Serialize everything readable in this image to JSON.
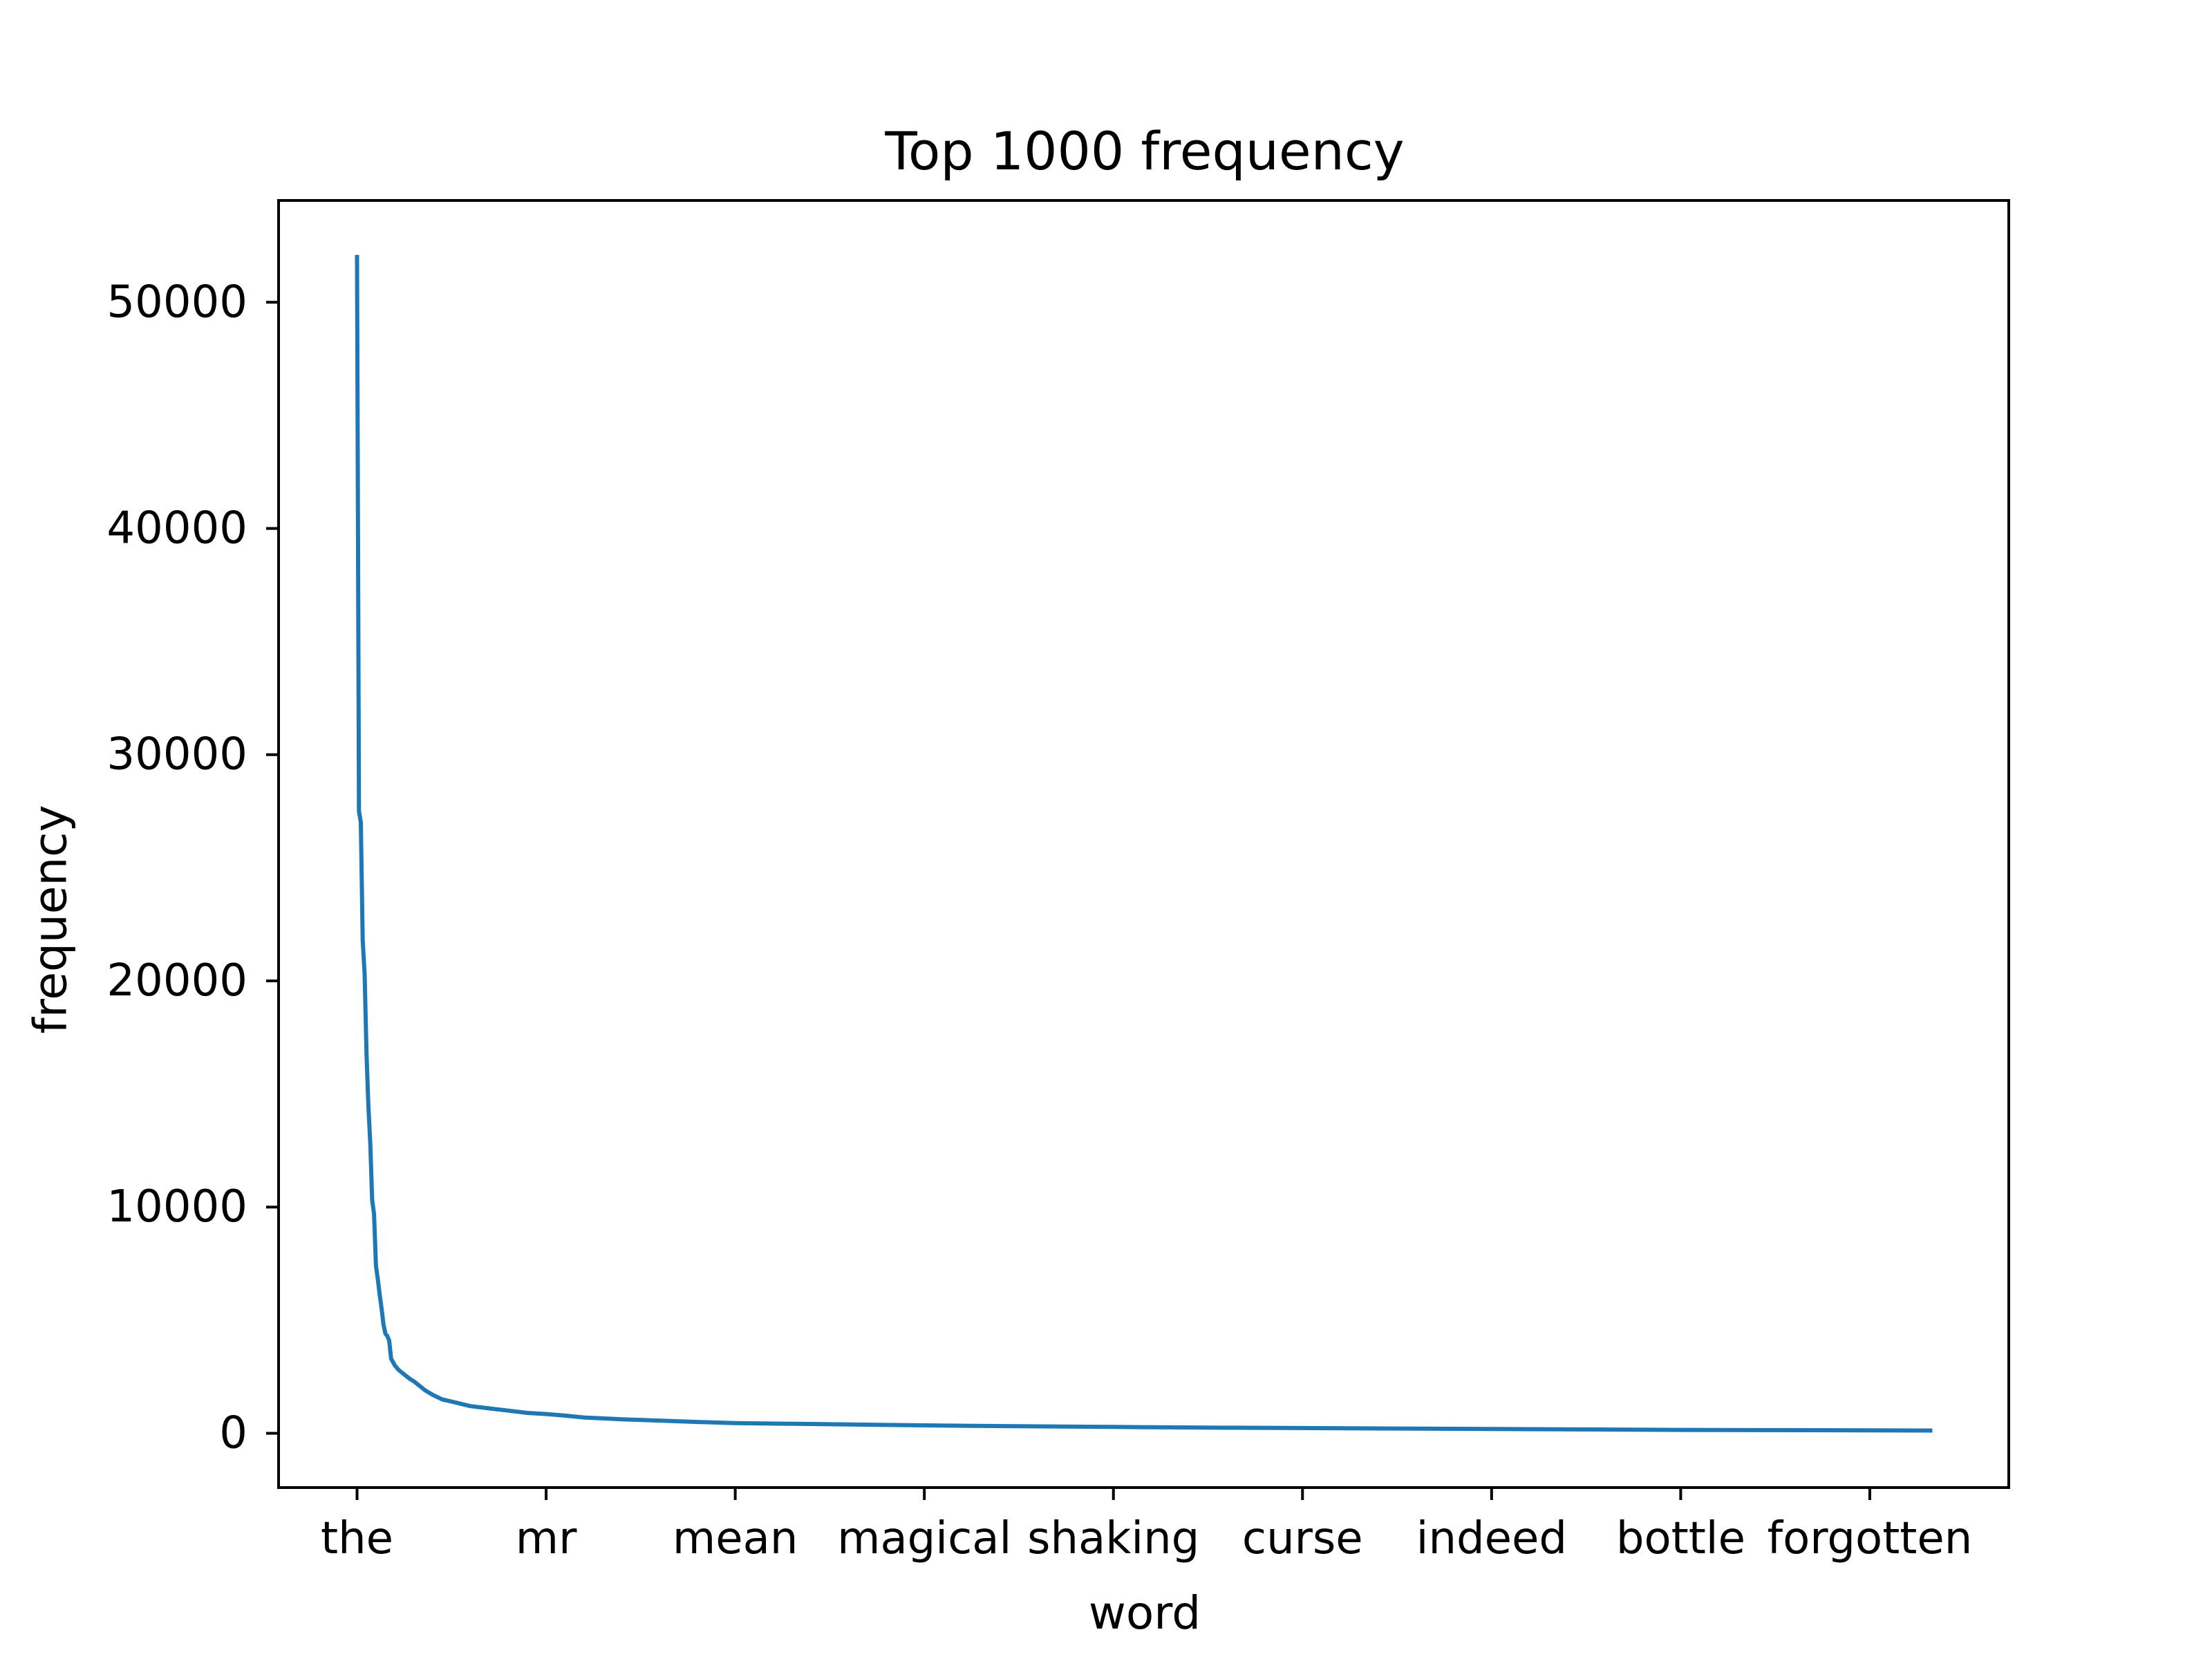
{
  "chart_data": {
    "type": "line",
    "title": "Top 1000 frequency",
    "xlabel": "word",
    "ylabel": "frequency",
    "xlim": [
      -41.5,
      873.5
    ],
    "ylim": [
      -2400,
      54500
    ],
    "grid": false,
    "legend": "none",
    "color": "#1f77b4",
    "x_ticks": [
      {
        "x": 0,
        "label": "the"
      },
      {
        "x": 100,
        "label": "mr"
      },
      {
        "x": 200,
        "label": "mean"
      },
      {
        "x": 300,
        "label": "magical"
      },
      {
        "x": 400,
        "label": "shaking"
      },
      {
        "x": 500,
        "label": "curse"
      },
      {
        "x": 600,
        "label": "indeed"
      },
      {
        "x": 700,
        "label": "bottle"
      },
      {
        "x": 800,
        "label": "forgotten"
      }
    ],
    "y_ticks": [
      0,
      10000,
      20000,
      30000,
      40000,
      50000
    ],
    "series": [
      {
        "x": [
          0,
          1,
          2,
          3,
          4,
          5,
          6,
          7,
          8,
          9,
          10,
          11,
          12,
          13,
          14,
          15,
          16,
          17,
          18,
          20,
          22,
          25,
          28,
          30,
          33,
          36,
          40,
          45,
          50,
          55,
          60,
          70,
          80,
          90,
          100,
          110,
          120,
          140,
          160,
          180,
          200,
          250,
          300,
          350,
          400,
          450,
          500,
          550,
          600,
          650,
          700,
          750,
          800,
          832
        ],
        "y": [
          52000,
          27500,
          27000,
          21800,
          20300,
          16800,
          14500,
          12800,
          10300,
          9700,
          7400,
          6800,
          6100,
          5500,
          4800,
          4400,
          4300,
          4100,
          3300,
          3000,
          2800,
          2600,
          2400,
          2300,
          2100,
          1900,
          1700,
          1500,
          1400,
          1300,
          1200,
          1100,
          1000,
          900,
          850,
          780,
          700,
          620,
          560,
          500,
          450,
          400,
          350,
          310,
          280,
          250,
          230,
          210,
          190,
          170,
          150,
          140,
          130,
          120
        ]
      }
    ]
  }
}
